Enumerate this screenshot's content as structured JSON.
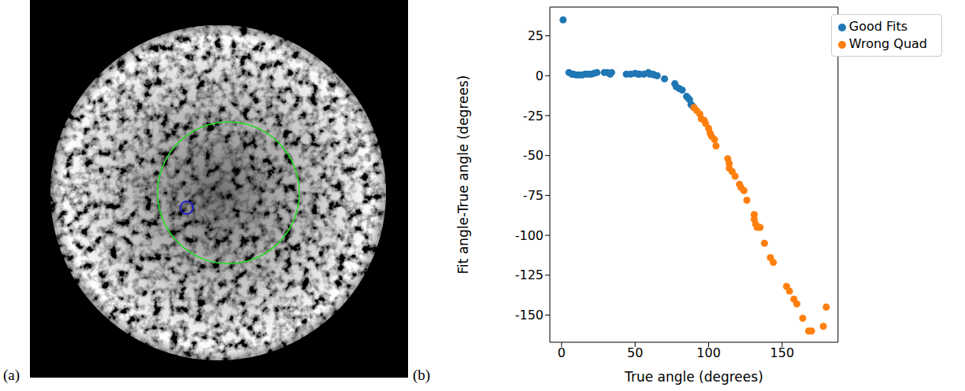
{
  "panel_labels": [
    "(a)",
    "(b)"
  ],
  "chart_data": {
    "type": "scatter",
    "xlabel": "True angle (degrees)",
    "ylabel": "Fit angle-True angle (degrees)",
    "xlim": [
      -8,
      188
    ],
    "xticks": [
      0,
      50,
      100,
      150
    ],
    "ylim": [
      -167,
      43
    ],
    "yticks": [
      25,
      0,
      -25,
      -50,
      -75,
      -100,
      -125,
      -150
    ],
    "legend": "upper right",
    "grid": false,
    "series": [
      {
        "name": "Good Fits",
        "color": "#1f77b4",
        "marker": "circle",
        "x": [
          1,
          5,
          7,
          8,
          10,
          12,
          14,
          16,
          18,
          20,
          22,
          24,
          29,
          31,
          33,
          34,
          44,
          47,
          50,
          52,
          53,
          56,
          59,
          60,
          62,
          63,
          65,
          70,
          77,
          78,
          80,
          82,
          85,
          86,
          87,
          88,
          89,
          90
        ],
        "values": [
          35,
          2,
          1,
          1,
          0.5,
          0.5,
          0.5,
          1,
          1,
          1,
          1.5,
          2,
          2,
          2,
          1,
          2,
          1,
          1,
          1.5,
          1,
          1,
          1,
          2,
          1,
          1,
          0.5,
          0,
          -2,
          -5,
          -7,
          -8,
          -9,
          -13,
          -14,
          -15,
          -18,
          -19,
          -20
        ]
      },
      {
        "name": "Wrong Quad",
        "color": "#ff7f0e",
        "marker": "circle",
        "x": [
          90,
          92,
          94,
          95,
          97,
          98,
          100,
          101,
          102,
          104,
          105,
          113,
          114,
          114,
          116,
          118,
          121,
          122,
          124,
          126,
          131,
          131,
          132,
          133,
          135,
          138,
          142,
          144,
          153,
          155,
          158,
          160,
          164,
          168,
          170,
          178,
          180
        ],
        "values": [
          -20,
          -22,
          -24,
          -27,
          -28,
          -30,
          -33,
          -36,
          -38,
          -40,
          -44,
          -52,
          -55,
          -58,
          -60,
          -63,
          -68,
          -70,
          -72,
          -78,
          -87,
          -90,
          -93,
          -95,
          -95,
          -105,
          -114,
          -117,
          -132,
          -135,
          -140,
          -143,
          -152,
          -160,
          -160,
          -157,
          -145
        ]
      }
    ]
  }
}
